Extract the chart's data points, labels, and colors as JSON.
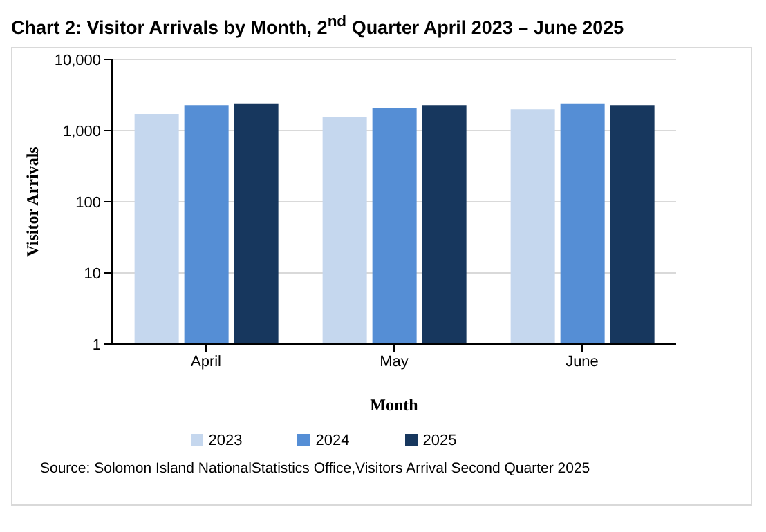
{
  "chart_data": {
    "type": "bar",
    "title": "Chart 2: Visitor Arrivals by Month, 2$^{nd}$ Quarter April 2023 – June 2025",
    "xlabel": "Month",
    "ylabel": "Visitor Arrivals",
    "categories": [
      "April",
      "May",
      "June"
    ],
    "series": [
      {
        "name": "2023",
        "color": "#c5d7ee",
        "values": [
          1710,
          1550,
          1990
        ]
      },
      {
        "name": "2024",
        "color": "#558ed5",
        "values": [
          2280,
          2060,
          2400
        ]
      },
      {
        "name": "2025",
        "color": "#17375e",
        "values": [
          2400,
          2280,
          2280
        ]
      }
    ],
    "log": "y",
    "ylim": [
      1,
      10000
    ],
    "yticks": [
      1,
      10,
      100,
      {
        "value": 1000,
        "label": "1,000"
      },
      {
        "value": 10000,
        "label": "10,000"
      }
    ],
    "grid": "y",
    "legend": "bottom",
    "annotations": [
      "Source: Solomon Island NationalStatistics Office,Visitors Arrival Second Quarter 2025"
    ]
  }
}
